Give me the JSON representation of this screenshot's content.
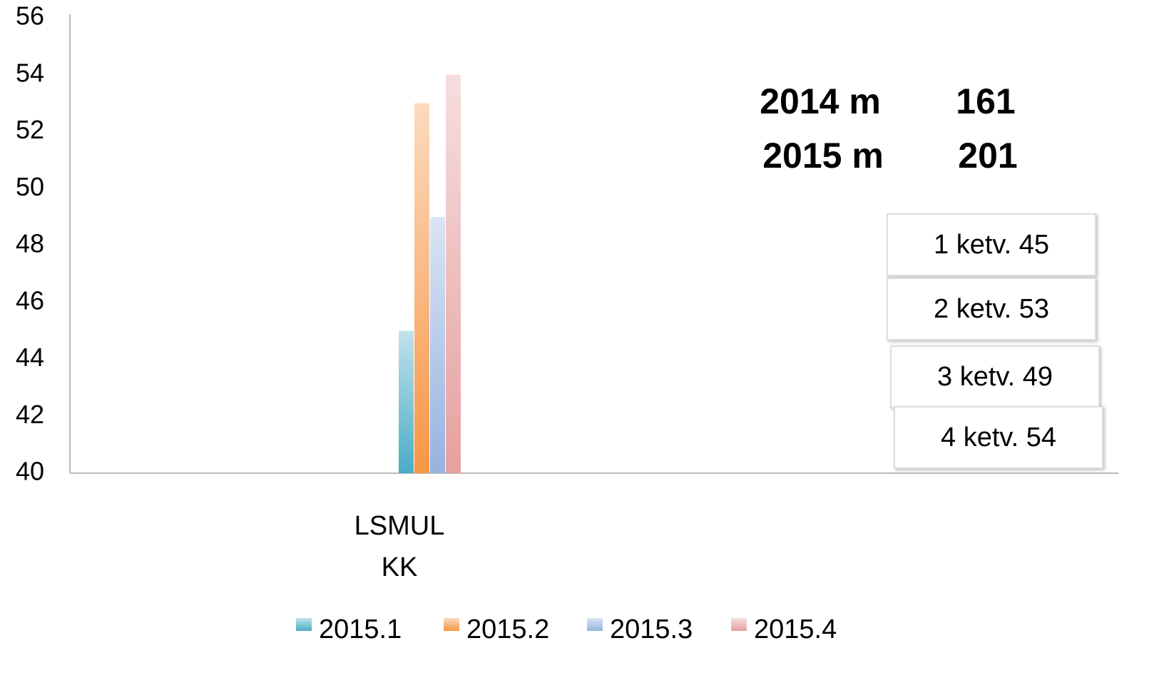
{
  "chart_data": {
    "type": "bar",
    "categories": [
      "LSMUL KK"
    ],
    "series": [
      {
        "name": "2015.1",
        "color": "#4bacc6",
        "values": [
          45
        ]
      },
      {
        "name": "2015.2",
        "color": "#f79646",
        "values": [
          53
        ]
      },
      {
        "name": "2015.3",
        "color": "#95b3e0",
        "values": [
          49
        ]
      },
      {
        "name": "2015.4",
        "color": "#e6a0a0",
        "values": [
          54
        ]
      }
    ],
    "ylim": [
      40,
      56
    ],
    "yticks": [
      40,
      42,
      44,
      46,
      48,
      50,
      52,
      54,
      56
    ],
    "legend": "bottom",
    "annotations": [
      "2014 m",
      "161",
      "2015 m",
      "201",
      "1 ketv. 45",
      "2 ketv. 53",
      "3 ketv. 49",
      "4 ketv. 54"
    ]
  }
}
